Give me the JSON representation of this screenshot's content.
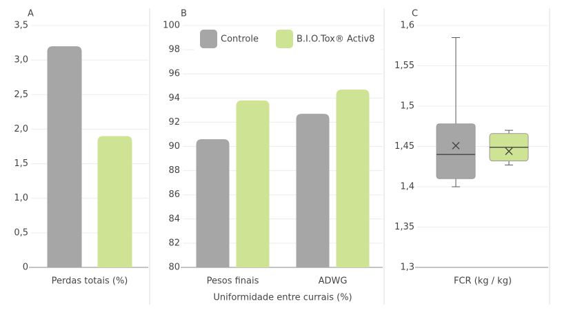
{
  "chart_data": [
    {
      "type": "bar",
      "label": "A",
      "categories": [
        "Perdas totais (%)"
      ],
      "series": [
        {
          "color": "#a6a6a6",
          "values": [
            3.2
          ]
        },
        {
          "color": "#cfe394",
          "values": [
            1.9
          ]
        }
      ],
      "ylim": [
        0,
        3.5
      ],
      "yticks": [
        0,
        {
          "value": 0.5,
          "label": "0,5"
        },
        {
          "value": 1.0,
          "label": "1,0"
        },
        {
          "value": 1.5,
          "label": "1,5"
        },
        {
          "value": 2.0,
          "label": "2,0"
        },
        {
          "value": 2.5,
          "label": "2,5"
        },
        {
          "value": 3.0,
          "label": "3,0"
        },
        {
          "value": 3.5,
          "label": "3,5"
        }
      ],
      "grid": true
    },
    {
      "type": "bar",
      "label": "B",
      "categories": [
        "Pesos finais",
        "ADWG"
      ],
      "xlabel": "Uniformidade entre currais (%)",
      "series": [
        {
          "name": "Controle",
          "color": "#a6a6a6",
          "values": [
            90.6,
            92.7
          ]
        },
        {
          "name": "B.I.O.Tox® Activ8",
          "color": "#cfe394",
          "values": [
            93.8,
            94.7
          ]
        }
      ],
      "ylim": [
        80,
        100
      ],
      "yticks": [
        80,
        82,
        84,
        86,
        88,
        90,
        92,
        94,
        96,
        98,
        100
      ],
      "grid": true,
      "legend": "top"
    },
    {
      "type": "box",
      "label": "C",
      "xlabel": "FCR (kg / kg)",
      "series": [
        {
          "color": "#a6a6a6",
          "min": 1.4,
          "q1": 1.41,
          "median": 1.44,
          "q3": 1.478,
          "max": 1.585,
          "mean": 1.451
        },
        {
          "color": "#cfe394",
          "min": 1.427,
          "q1": 1.432,
          "median": 1.449,
          "q3": 1.466,
          "max": 1.47,
          "mean": 1.444
        }
      ],
      "ylim": [
        1.3,
        1.6
      ],
      "yticks": [
        {
          "value": 1.3,
          "label": "1,3"
        },
        {
          "value": 1.35,
          "label": "1,35"
        },
        {
          "value": 1.4,
          "label": "1,4"
        },
        {
          "value": 1.45,
          "label": "1,45"
        },
        {
          "value": 1.5,
          "label": "1,5"
        },
        {
          "value": 1.55,
          "label": "1,55"
        },
        {
          "value": 1.6,
          "label": "1,6"
        }
      ],
      "grid": true
    }
  ]
}
